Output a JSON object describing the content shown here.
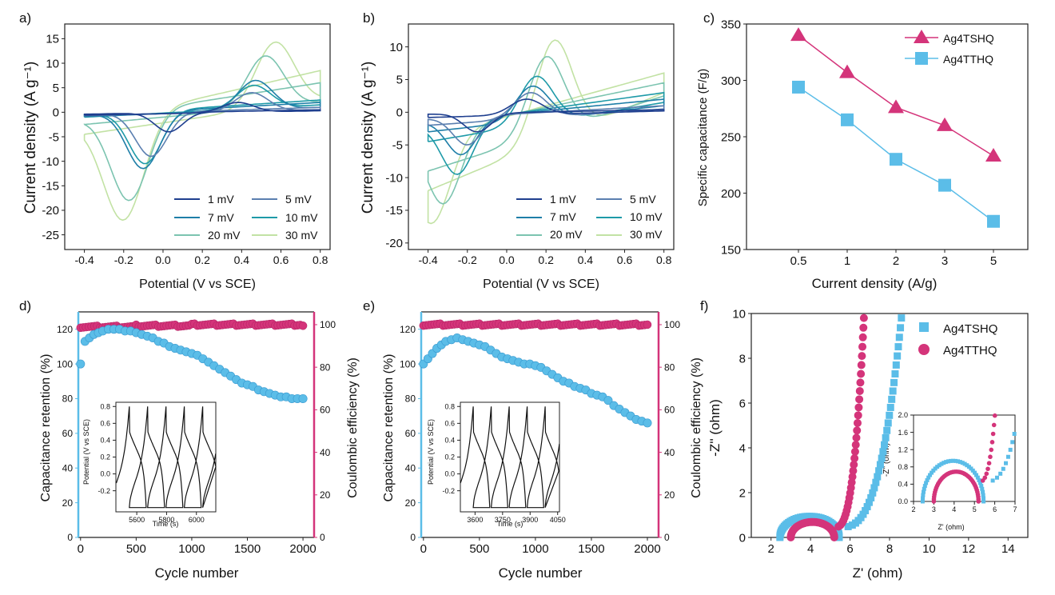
{
  "chart_data": [
    {
      "panel_label": "a)",
      "type": "line",
      "xlabel": "Potential (V vs SCE)",
      "ylabel": "Current density (A g⁻¹)",
      "xlim": [
        -0.5,
        0.85
      ],
      "ylim": [
        -28,
        18
      ],
      "xticks": [
        "-0.4",
        "-0.2",
        "0.0",
        "0.2",
        "0.4",
        "0.6",
        "0.8"
      ],
      "yticks": [
        "-25",
        "-20",
        "-15",
        "-10",
        "-5",
        "0",
        "5",
        "10",
        "15"
      ],
      "legend_position": "bottom-right",
      "series": [
        {
          "name": "1 mV",
          "color": "#1f3f8f",
          "vmin": -0.4,
          "vmax": 0.8,
          "cathodic_peak": [
            0.03,
            -4
          ],
          "anodic_peak": [
            0.38,
            2
          ],
          "end_upper": 0.5,
          "end_lower": 0.3,
          "start_upper": -0.4,
          "start_lower": -0.6
        },
        {
          "name": "5 mV",
          "color": "#5b7fb0",
          "vmin": -0.4,
          "vmax": 0.8,
          "cathodic_peak": [
            -0.06,
            -9
          ],
          "anodic_peak": [
            0.45,
            4
          ],
          "end_upper": 1.0,
          "end_lower": 0.5,
          "start_upper": -0.5,
          "start_lower": -0.7
        },
        {
          "name": "7 mV",
          "color": "#1f7fa8",
          "vmin": -0.4,
          "vmax": 0.8,
          "cathodic_peak": [
            -0.1,
            -11.5
          ],
          "anodic_peak": [
            0.47,
            6.5
          ],
          "end_upper": 2.0,
          "end_lower": 1.0,
          "start_upper": -0.6,
          "start_lower": -0.9
        },
        {
          "name": "10 mV",
          "color": "#1e9aa8",
          "vmin": -0.4,
          "vmax": 0.8,
          "cathodic_peak": [
            -0.09,
            -10.5
          ],
          "anodic_peak": [
            0.46,
            5.5
          ],
          "end_upper": 2.5,
          "end_lower": 1.5,
          "start_upper": -0.6,
          "start_lower": -1.0
        },
        {
          "name": "20 mV",
          "color": "#7cc4b0",
          "vmin": -0.4,
          "vmax": 0.8,
          "cathodic_peak": [
            -0.17,
            -18
          ],
          "anodic_peak": [
            0.52,
            11.5
          ],
          "end_upper": 6.0,
          "end_lower": 2.0,
          "start_upper": -1.5,
          "start_lower": -2.5
        },
        {
          "name": "30 mV",
          "color": "#c2e2a4",
          "vmin": -0.4,
          "vmax": 0.8,
          "cathodic_peak": [
            -0.2,
            -22
          ],
          "anodic_peak": [
            0.57,
            14.3
          ],
          "end_upper": 8.5,
          "end_lower": 2.5,
          "start_upper": -2.5,
          "start_lower": -4.5
        }
      ]
    },
    {
      "panel_label": "b)",
      "type": "line",
      "xlabel": "Potential (V vs SCE)",
      "ylabel": "Current density (A g⁻¹)",
      "xlim": [
        -0.5,
        0.85
      ],
      "ylim": [
        -21,
        13.5
      ],
      "xticks": [
        "-0.4",
        "-0.2",
        "0.0",
        "0.2",
        "0.4",
        "0.6",
        "0.8"
      ],
      "yticks": [
        "-20",
        "-15",
        "-10",
        "-5",
        "0",
        "5",
        "10"
      ],
      "legend_position": "bottom-right",
      "series": [
        {
          "name": "1 mV",
          "color": "#1f3f8f",
          "vmin": -0.4,
          "vmax": 0.8,
          "cathodic_peak": [
            -0.15,
            -3
          ],
          "anodic_peak": [
            0.1,
            2
          ],
          "end_upper": 0.4,
          "end_lower": 0.2,
          "start_upper": -0.3,
          "start_lower": -0.8
        },
        {
          "name": "5 mV",
          "color": "#5b7fb0",
          "vmin": -0.4,
          "vmax": 0.8,
          "cathodic_peak": [
            -0.2,
            -5
          ],
          "anodic_peak": [
            0.12,
            3
          ],
          "end_upper": 1.0,
          "end_lower": 0.5,
          "start_upper": -1.0,
          "start_lower": -2.0
        },
        {
          "name": "7 mV",
          "color": "#1f7fa8",
          "vmin": -0.4,
          "vmax": 0.8,
          "cathodic_peak": [
            -0.23,
            -6.5
          ],
          "anodic_peak": [
            0.13,
            4
          ],
          "end_upper": 2.0,
          "end_lower": 1.0,
          "start_upper": -1.5,
          "start_lower": -3.0
        },
        {
          "name": "10 mV",
          "color": "#1e9aa8",
          "vmin": -0.4,
          "vmax": 0.8,
          "cathodic_peak": [
            -0.25,
            -9.5
          ],
          "anodic_peak": [
            0.15,
            5.5
          ],
          "end_upper": 3.0,
          "end_lower": 1.5,
          "start_upper": -2.0,
          "start_lower": -4.5
        },
        {
          "name": "20 mV",
          "color": "#7cc4b0",
          "vmin": -0.4,
          "vmax": 0.8,
          "cathodic_peak": [
            -0.32,
            -14
          ],
          "anodic_peak": [
            0.2,
            8.5
          ],
          "end_upper": 4.5,
          "end_lower": 2.5,
          "start_upper": -3.0,
          "start_lower": -9.0
        },
        {
          "name": "30 mV",
          "color": "#c2e2a4",
          "vmin": -0.4,
          "vmax": 0.8,
          "cathodic_peak": [
            -0.38,
            -17
          ],
          "anodic_peak": [
            0.24,
            11
          ],
          "end_upper": 6.0,
          "end_lower": 3.0,
          "start_upper": -4.0,
          "start_lower": -12.0
        }
      ]
    },
    {
      "panel_label": "c)",
      "type": "line",
      "xlabel": "Current density (A/g)",
      "ylabel": "Specific capacitance (F/g)",
      "categories": [
        "0.5",
        "1",
        "2",
        "3",
        "5"
      ],
      "ylim": [
        150,
        350
      ],
      "yticks": [
        "150",
        "200",
        "250",
        "300",
        "350"
      ],
      "legend_position": "top-right",
      "series": [
        {
          "name": "Ag4TSHQ",
          "color": "#d4347a",
          "marker": "triangle",
          "values": [
            340,
            307,
            276,
            260,
            233
          ]
        },
        {
          "name": "Ag4TTHQ",
          "color": "#5bbde8",
          "marker": "square",
          "values": [
            294,
            265,
            230,
            207,
            175
          ]
        }
      ]
    },
    {
      "panel_label": "d)",
      "type": "scatter",
      "xlabel": "Cycle number",
      "ylabel": "Capacitance retention (%)",
      "ylabel_right": "Coulombic efficiency (%)",
      "xlim": [
        -20,
        2100
      ],
      "ylim": [
        0,
        130
      ],
      "ylim_right": [
        0,
        106
      ],
      "xticks": [
        "0",
        "500",
        "1000",
        "1500",
        "2000"
      ],
      "yticks": [
        "0",
        "20",
        "40",
        "60",
        "80",
        "100",
        "120"
      ],
      "yticks_right": [
        "0",
        "20",
        "40",
        "60",
        "80",
        "100"
      ],
      "retention_color": "#5bbde8",
      "efficiency_color": "#d4347a",
      "retention_x": [
        0,
        40,
        80,
        120,
        160,
        200,
        250,
        300,
        350,
        400,
        450,
        500,
        550,
        600,
        650,
        700,
        750,
        800,
        850,
        900,
        950,
        1000,
        1050,
        1100,
        1150,
        1200,
        1250,
        1300,
        1350,
        1400,
        1450,
        1500,
        1550,
        1600,
        1650,
        1700,
        1750,
        1800,
        1850,
        1900,
        1950,
        2000
      ],
      "retention_y": [
        100,
        113,
        115,
        117,
        118,
        119,
        120,
        120,
        120,
        119,
        119,
        118,
        117,
        116,
        115,
        113,
        112,
        110,
        109,
        108,
        107,
        106,
        105,
        103,
        101,
        99,
        97,
        95,
        93,
        91,
        89,
        88,
        87,
        85,
        84,
        83,
        82,
        81,
        81,
        80,
        80,
        80
      ],
      "efficiency_x": [
        0,
        500,
        1000,
        1500,
        2000
      ],
      "efficiency_y": [
        99,
        99.5,
        100,
        100,
        99.5
      ],
      "inset": {
        "xlabel": "Time (s)",
        "ylabel": "Potential (V vs SCE)",
        "xlim": [
          5460,
          6130
        ],
        "ylim": [
          -0.45,
          0.85
        ],
        "xticks": [
          "5600",
          "5800",
          "6000"
        ],
        "yticks": [
          "-0.2",
          "0.0",
          "0.2",
          "0.4",
          "0.6",
          "0.8"
        ],
        "cycle_period": 123,
        "first_peak": 5550,
        "n_cycles": 5,
        "vmin": -0.4,
        "vmax": 0.8
      }
    },
    {
      "panel_label": "e)",
      "type": "scatter",
      "xlabel": "Cycle number",
      "ylabel": "Capacitance retention (%)",
      "ylabel_right": "Coulombic efficiency (%)",
      "xlim": [
        -20,
        2100
      ],
      "ylim": [
        0,
        130
      ],
      "ylim_right": [
        0,
        106
      ],
      "xticks": [
        "0",
        "500",
        "1000",
        "1500",
        "2000"
      ],
      "yticks": [
        "0",
        "20",
        "40",
        "60",
        "80",
        "100",
        "120"
      ],
      "yticks_right": [
        "0",
        "20",
        "40",
        "60",
        "80",
        "100"
      ],
      "retention_color": "#5bbde8",
      "efficiency_color": "#d4347a",
      "retention_x": [
        0,
        40,
        80,
        120,
        160,
        200,
        250,
        300,
        350,
        400,
        450,
        500,
        550,
        600,
        650,
        700,
        750,
        800,
        850,
        900,
        950,
        1000,
        1050,
        1100,
        1150,
        1200,
        1250,
        1300,
        1350,
        1400,
        1450,
        1500,
        1550,
        1600,
        1650,
        1700,
        1750,
        1800,
        1850,
        1900,
        1950,
        2000
      ],
      "retention_y": [
        100,
        103,
        106,
        109,
        111,
        113,
        114,
        115,
        114,
        113,
        112,
        111,
        110,
        108,
        106,
        104,
        103,
        102,
        101,
        100,
        100,
        99,
        98,
        96,
        94,
        92,
        90,
        89,
        87,
        86,
        85,
        83,
        82,
        81,
        79,
        76,
        74,
        72,
        70,
        68,
        67,
        66
      ],
      "efficiency_x": [
        0,
        500,
        1000,
        1500,
        2000
      ],
      "efficiency_y": [
        100,
        100,
        100,
        100,
        100
      ],
      "inset": {
        "xlabel": "Time (s)",
        "ylabel": "Potential (V vs SCE)",
        "xlim": [
          3520,
          4060
        ],
        "ylim": [
          -0.45,
          0.85
        ],
        "xticks": [
          "3600",
          "3750",
          "3900",
          "4050"
        ],
        "yticks": [
          "-0.2",
          "0.0",
          "0.2",
          "0.4",
          "0.6",
          "0.8"
        ],
        "cycle_period": 98,
        "first_peak": 3590,
        "n_cycles": 5,
        "vmin": -0.4,
        "vmax": 0.8
      }
    },
    {
      "panel_label": "f)",
      "type": "scatter",
      "xlabel": "Z' (ohm)",
      "ylabel": "-Z'' (ohm)",
      "xlim": [
        1,
        15
      ],
      "ylim": [
        0,
        10
      ],
      "xticks": [
        "2",
        "4",
        "6",
        "8",
        "10",
        "12",
        "14"
      ],
      "yticks": [
        "0",
        "2",
        "4",
        "6",
        "8",
        "10"
      ],
      "legend_position": "top-right",
      "series": [
        {
          "name": "Ag4TSHQ",
          "color": "#5bbde8",
          "marker": "square",
          "x0": 2.45,
          "diameter": 3.0,
          "knee": 5.45,
          "tail_top": 9.8,
          "tail_x_top": 8.6
        },
        {
          "name": "Ag4TTHQ",
          "color": "#d4347a",
          "marker": "circle",
          "x0": 3.0,
          "diameter": 2.2,
          "knee": 5.2,
          "tail_top": 9.8,
          "tail_x_top": 6.7
        }
      ],
      "inset": {
        "xlabel": "Z' (ohm)",
        "ylabel": "-Z'' (ohm)",
        "xlim": [
          2,
          7
        ],
        "ylim": [
          0,
          2.0
        ],
        "xticks": [
          "2",
          "3",
          "4",
          "5",
          "6",
          "7"
        ],
        "yticks": [
          "0.0",
          "0.4",
          "0.8",
          "1.2",
          "1.6",
          "2.0"
        ]
      }
    }
  ]
}
